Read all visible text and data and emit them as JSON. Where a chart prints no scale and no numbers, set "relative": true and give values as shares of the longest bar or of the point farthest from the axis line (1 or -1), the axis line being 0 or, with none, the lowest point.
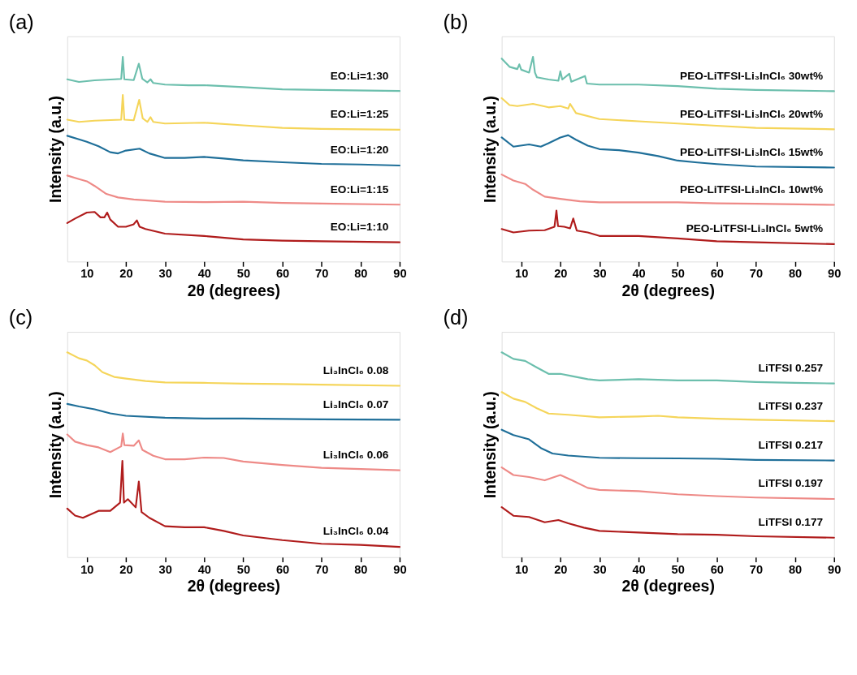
{
  "chart_data": [
    {
      "type": "line",
      "title": "(a)",
      "xlabel": "2θ (degrees)",
      "ylabel": "Intensity (a.u.)",
      "relative": true,
      "tick_labels": "x",
      "line_style": "solid",
      "xlim": [
        5,
        90
      ],
      "xticks": [
        10,
        20,
        30,
        40,
        50,
        60,
        70,
        80,
        90
      ],
      "series": [
        {
          "name": "EO:Li=1:30",
          "color": "#6cbfad",
          "x": [
            5,
            8,
            12,
            17,
            18.8,
            19.2,
            19.6,
            22,
            23.3,
            24.2,
            25.5,
            26.3,
            27,
            30,
            36,
            40,
            50,
            60,
            70,
            90
          ],
          "values": [
            0.89,
            0.877,
            0.885,
            0.89,
            0.892,
            1.0,
            0.89,
            0.886,
            0.966,
            0.892,
            0.875,
            0.89,
            0.872,
            0.864,
            0.861,
            0.861,
            0.852,
            0.841,
            0.838,
            0.833
          ]
        },
        {
          "name": "EO:Li=1:25",
          "color": "#f5d55a",
          "x": [
            5,
            8,
            12,
            18.8,
            19.2,
            19.6,
            22,
            23.4,
            24.3,
            25.5,
            26.3,
            27,
            30,
            40,
            50,
            60,
            70,
            90
          ],
          "values": [
            0.693,
            0.682,
            0.688,
            0.693,
            0.813,
            0.693,
            0.69,
            0.79,
            0.699,
            0.682,
            0.705,
            0.682,
            0.674,
            0.678,
            0.665,
            0.653,
            0.648,
            0.644
          ]
        },
        {
          "name": "EO:Li=1:20",
          "color": "#1f6f99",
          "x": [
            5,
            8,
            10,
            13,
            16,
            18,
            20,
            23.5,
            26,
            30,
            35,
            40,
            45,
            50,
            60,
            70,
            80,
            90
          ],
          "values": [
            0.614,
            0.597,
            0.585,
            0.563,
            0.534,
            0.528,
            0.542,
            0.551,
            0.528,
            0.506,
            0.506,
            0.511,
            0.503,
            0.494,
            0.485,
            0.477,
            0.474,
            0.469
          ]
        },
        {
          "name": "EO:Li=1:15",
          "color": "#ee8a87",
          "x": [
            5,
            8,
            10,
            12,
            15,
            18,
            22,
            30,
            40,
            50,
            60,
            70,
            90
          ],
          "values": [
            0.42,
            0.403,
            0.392,
            0.369,
            0.33,
            0.313,
            0.303,
            0.292,
            0.29,
            0.292,
            0.286,
            0.283,
            0.278
          ]
        },
        {
          "name": "EO:Li=1:10",
          "color": "#b01c1c",
          "x": [
            5,
            7,
            10,
            12,
            13.5,
            14.5,
            15.2,
            16,
            18,
            20,
            22,
            22.8,
            23.5,
            25,
            30,
            40,
            50,
            60,
            70,
            90
          ],
          "values": [
            0.188,
            0.21,
            0.239,
            0.242,
            0.216,
            0.216,
            0.239,
            0.205,
            0.17,
            0.17,
            0.182,
            0.201,
            0.17,
            0.159,
            0.136,
            0.125,
            0.108,
            0.102,
            0.099,
            0.094
          ]
        }
      ]
    },
    {
      "type": "line",
      "title": "(b)",
      "xlabel": "2θ (degrees)",
      "ylabel": "Intensity (a.u.)",
      "relative": true,
      "tick_labels": "x",
      "line_style": "solid",
      "xlim": [
        5,
        90
      ],
      "xticks": [
        10,
        20,
        30,
        40,
        50,
        60,
        70,
        80,
        90
      ],
      "series": [
        {
          "name": "PEO-LiTFSI-Li₃InCl₆ 30wt%",
          "color": "#6cbfad",
          "x": [
            5,
            7,
            9,
            9.5,
            10,
            12,
            13,
            13.5,
            14,
            17,
            19.5,
            20,
            20.5,
            22.3,
            22.8,
            26.3,
            26.8,
            30,
            40,
            50,
            60,
            70,
            90
          ],
          "values": [
            0.991,
            0.951,
            0.94,
            0.963,
            0.937,
            0.923,
            1.0,
            0.923,
            0.9,
            0.889,
            0.883,
            0.929,
            0.889,
            0.917,
            0.878,
            0.906,
            0.869,
            0.864,
            0.864,
            0.857,
            0.844,
            0.838,
            0.832
          ]
        },
        {
          "name": "PEO-LiTFSI-Li₃InCl₆ 20wt%",
          "color": "#f5d55a",
          "x": [
            5,
            7,
            9,
            13,
            17,
            20,
            22,
            22.5,
            24,
            30,
            40,
            50,
            60,
            70,
            90
          ],
          "values": [
            0.798,
            0.764,
            0.759,
            0.77,
            0.753,
            0.759,
            0.747,
            0.77,
            0.725,
            0.696,
            0.685,
            0.674,
            0.663,
            0.653,
            0.646
          ]
        },
        {
          "name": "PEO-LiTFSI-Li₃InCl₆ 15wt%",
          "color": "#1f6f99",
          "x": [
            5,
            8,
            12,
            15,
            17,
            20,
            22,
            24,
            27,
            30,
            35,
            40,
            45,
            50,
            55,
            60,
            70,
            90
          ],
          "values": [
            0.606,
            0.561,
            0.572,
            0.561,
            0.578,
            0.606,
            0.617,
            0.595,
            0.566,
            0.549,
            0.544,
            0.532,
            0.515,
            0.493,
            0.484,
            0.476,
            0.464,
            0.459
          ]
        },
        {
          "name": "PEO-LiTFSI-Li₃InCl₆ 10wt%",
          "color": "#ee8a87",
          "x": [
            5,
            8,
            11,
            13,
            16,
            20,
            25,
            30,
            40,
            50,
            60,
            70,
            90
          ],
          "values": [
            0.425,
            0.396,
            0.379,
            0.351,
            0.317,
            0.306,
            0.294,
            0.289,
            0.289,
            0.289,
            0.284,
            0.282,
            0.277
          ]
        },
        {
          "name": "PEO-LiTFSI-Li₃InCl₆ 5wt%",
          "color": "#b01c1c",
          "x": [
            5,
            8,
            12,
            16,
            18.5,
            19,
            19.4,
            21,
            22.5,
            23.3,
            24.2,
            27,
            30,
            40,
            50,
            60,
            70,
            90
          ],
          "values": [
            0.159,
            0.142,
            0.151,
            0.153,
            0.17,
            0.249,
            0.173,
            0.17,
            0.162,
            0.21,
            0.151,
            0.142,
            0.125,
            0.125,
            0.113,
            0.099,
            0.094,
            0.085
          ]
        }
      ]
    },
    {
      "type": "line",
      "title": "(c)",
      "xlabel": "2θ (degrees)",
      "ylabel": "Intensity (a.u.)",
      "relative": true,
      "tick_labels": "x",
      "line_style": "solid",
      "xlim": [
        5,
        90
      ],
      "xticks": [
        10,
        20,
        30,
        40,
        50,
        60,
        70,
        80,
        90
      ],
      "series": [
        {
          "name": "Li₃InCl₆ 0.08",
          "color": "#f5d55a",
          "x": [
            5,
            8,
            10,
            12,
            14,
            17,
            20,
            25,
            30,
            40,
            50,
            60,
            70,
            90
          ],
          "values": [
            1.0,
            0.971,
            0.96,
            0.937,
            0.903,
            0.88,
            0.872,
            0.86,
            0.853,
            0.851,
            0.847,
            0.845,
            0.842,
            0.837
          ]
        },
        {
          "name": "Li₃InCl₆ 0.07",
          "color": "#1f6f99",
          "x": [
            5,
            8,
            12,
            16,
            20,
            30,
            40,
            50,
            60,
            70,
            90
          ],
          "values": [
            0.748,
            0.736,
            0.722,
            0.702,
            0.69,
            0.681,
            0.677,
            0.677,
            0.675,
            0.673,
            0.671
          ]
        },
        {
          "name": "Li₃InCl₆ 0.06",
          "color": "#ee8a87",
          "x": [
            5,
            7,
            10,
            13,
            16,
            18.8,
            19.2,
            19.6,
            22,
            23.3,
            24.2,
            27,
            30,
            35,
            40,
            45,
            50,
            60,
            70,
            90
          ],
          "values": [
            0.599,
            0.564,
            0.547,
            0.536,
            0.513,
            0.541,
            0.604,
            0.547,
            0.544,
            0.57,
            0.524,
            0.495,
            0.478,
            0.478,
            0.486,
            0.484,
            0.467,
            0.45,
            0.436,
            0.424
          ]
        },
        {
          "name": "Li₃InCl₆ 0.04",
          "color": "#b01c1c",
          "x": [
            5,
            7,
            9,
            13,
            16,
            18.5,
            19.1,
            19.5,
            20.5,
            22.5,
            23.3,
            24,
            26,
            30,
            35,
            40,
            45,
            50,
            60,
            70,
            80,
            90
          ],
          "values": [
            0.237,
            0.203,
            0.192,
            0.226,
            0.226,
            0.266,
            0.47,
            0.266,
            0.283,
            0.243,
            0.369,
            0.22,
            0.192,
            0.151,
            0.146,
            0.146,
            0.128,
            0.106,
            0.083,
            0.065,
            0.06,
            0.05
          ]
        }
      ]
    },
    {
      "type": "line",
      "title": "(d)",
      "xlabel": "2θ (degrees)",
      "ylabel": "Intensity (a.u.)",
      "relative": true,
      "tick_labels": "x",
      "line_style": "solid",
      "xlim": [
        5,
        90
      ],
      "xticks": [
        10,
        20,
        30,
        40,
        50,
        60,
        70,
        80,
        90
      ],
      "series": [
        {
          "name": "LiTFSI 0.257",
          "color": "#6cbfad",
          "x": [
            5,
            8,
            11,
            14,
            17,
            20,
            23,
            27,
            30,
            40,
            50,
            60,
            70,
            80,
            90
          ],
          "values": [
            1.0,
            0.968,
            0.958,
            0.926,
            0.895,
            0.895,
            0.884,
            0.869,
            0.863,
            0.869,
            0.863,
            0.863,
            0.855,
            0.851,
            0.848
          ]
        },
        {
          "name": "LiTFSI 0.237",
          "color": "#f5d55a",
          "x": [
            5,
            8,
            11,
            14,
            17,
            22,
            30,
            40,
            45,
            50,
            60,
            70,
            90
          ],
          "values": [
            0.806,
            0.774,
            0.758,
            0.727,
            0.701,
            0.695,
            0.683,
            0.687,
            0.69,
            0.683,
            0.676,
            0.671,
            0.664
          ]
        },
        {
          "name": "LiTFSI 0.217",
          "color": "#1f6f99",
          "x": [
            5,
            8,
            12,
            15,
            18,
            22,
            30,
            40,
            50,
            60,
            70,
            90
          ],
          "values": [
            0.622,
            0.596,
            0.575,
            0.533,
            0.506,
            0.496,
            0.485,
            0.483,
            0.482,
            0.48,
            0.475,
            0.472
          ]
        },
        {
          "name": "LiTFSI 0.197",
          "color": "#ee8a87",
          "x": [
            5,
            8,
            12,
            16,
            20,
            23,
            27,
            30,
            40,
            50,
            60,
            70,
            90
          ],
          "values": [
            0.438,
            0.401,
            0.391,
            0.375,
            0.401,
            0.375,
            0.338,
            0.328,
            0.322,
            0.307,
            0.298,
            0.291,
            0.284
          ]
        },
        {
          "name": "LiTFSI 0.177",
          "color": "#b01c1c",
          "x": [
            5,
            8,
            12,
            16,
            19.5,
            22,
            26,
            30,
            40,
            50,
            60,
            70,
            90
          ],
          "values": [
            0.244,
            0.202,
            0.196,
            0.17,
            0.181,
            0.165,
            0.144,
            0.128,
            0.12,
            0.112,
            0.109,
            0.102,
            0.095
          ]
        }
      ]
    }
  ]
}
